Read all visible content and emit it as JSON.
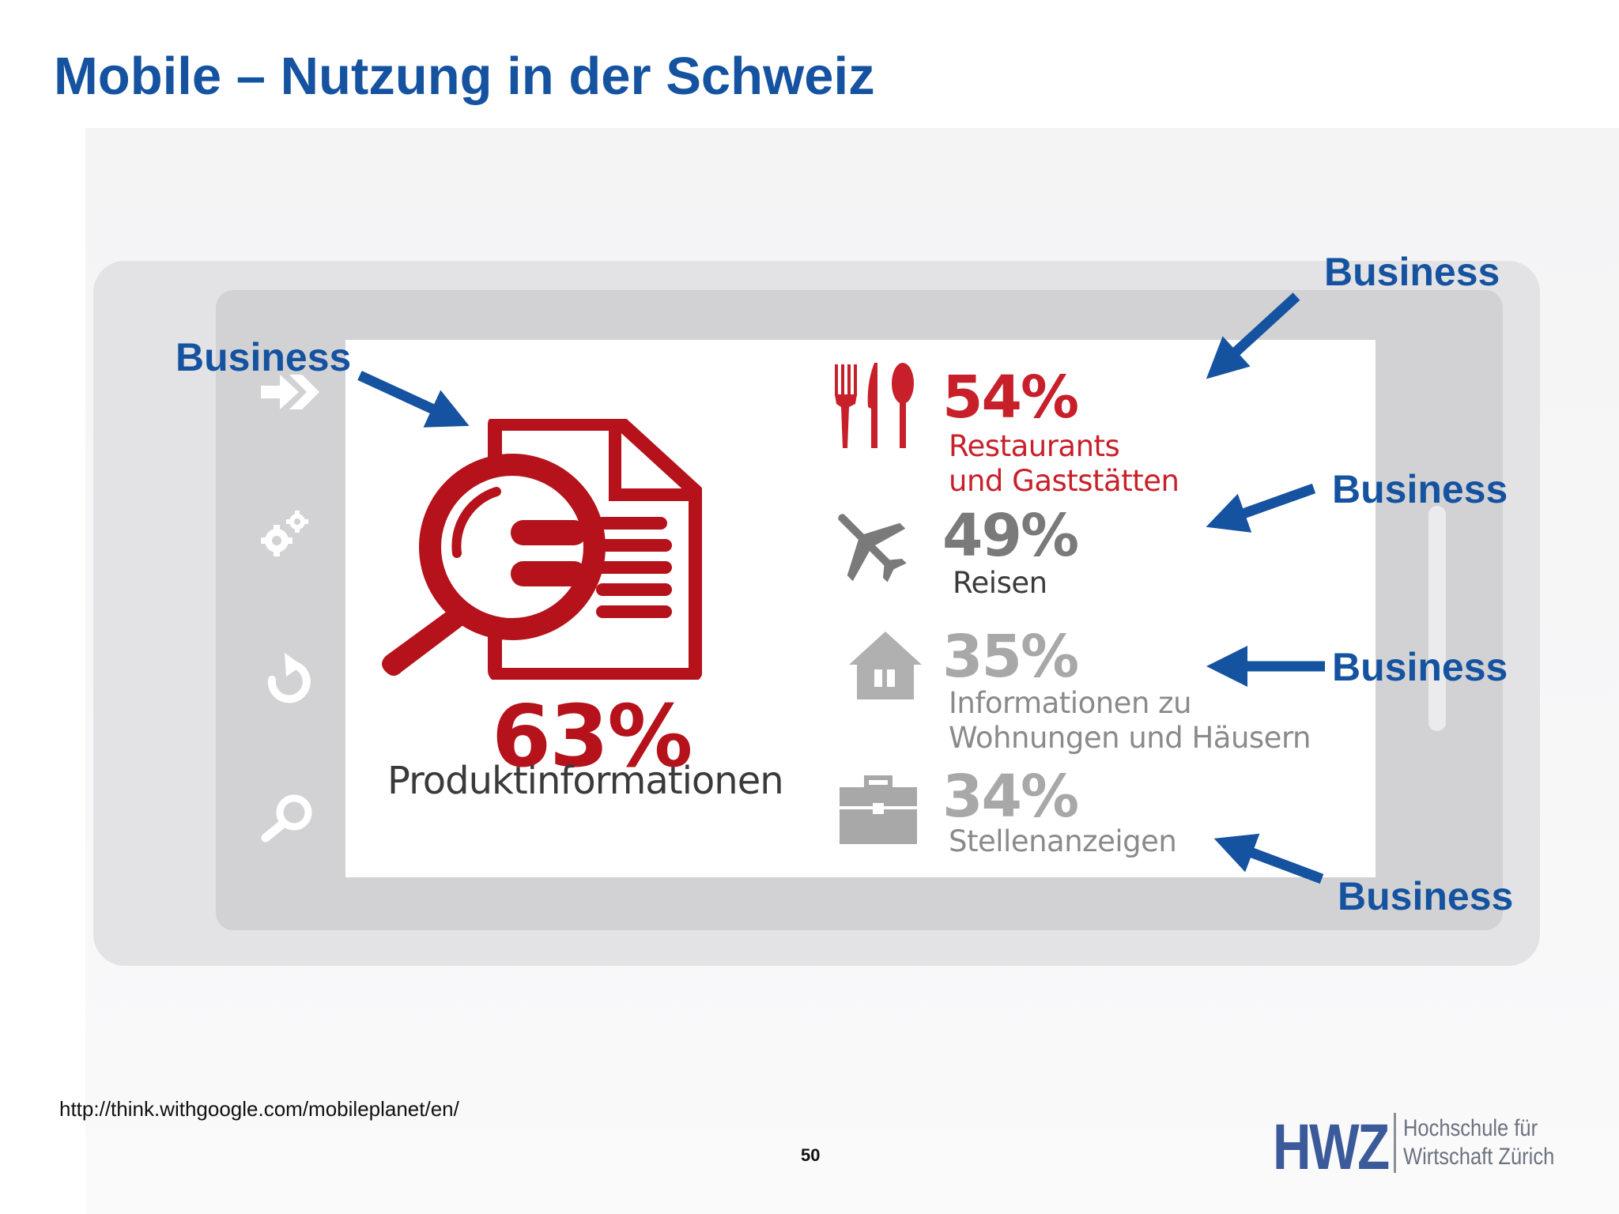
{
  "slide": {
    "title": "Mobile – Nutzung in der Schweiz",
    "source": "http://think.withgoogle.com/mobileplanet/en/",
    "page_number": "50"
  },
  "infographic": {
    "main": {
      "percent": "63%",
      "label": "Produktinformationen",
      "icon": "search-document-icon",
      "color": "#b5121b"
    },
    "stats": [
      {
        "percent": "54%",
        "label_lines": [
          "Restaurants",
          "und Gaststätten"
        ],
        "icon": "cutlery-icon",
        "color": "#c8202a"
      },
      {
        "percent": "49%",
        "label_lines": [
          "Reisen"
        ],
        "icon": "airplane-icon",
        "color": "#7a7a7a"
      },
      {
        "percent": "35%",
        "label_lines": [
          "Informationen zu",
          "Wohnungen und Häusern"
        ],
        "icon": "house-icon",
        "color": "#9a9a9a"
      },
      {
        "percent": "34%",
        "label_lines": [
          "Stellenanzeigen"
        ],
        "icon": "briefcase-icon",
        "color": "#9a9a9a"
      }
    ],
    "side_icons": [
      "share-arrow-icon",
      "gears-icon",
      "undo-icon",
      "magnifier-icon"
    ]
  },
  "annotations": {
    "label": "Business",
    "labels": [
      "Business",
      "Business",
      "Business",
      "Business",
      "Business"
    ],
    "color": "#1553a0"
  },
  "logo": {
    "acronym": "HWZ",
    "line1": "Hochschule für",
    "line2": "Wirtschaft Zürich"
  }
}
